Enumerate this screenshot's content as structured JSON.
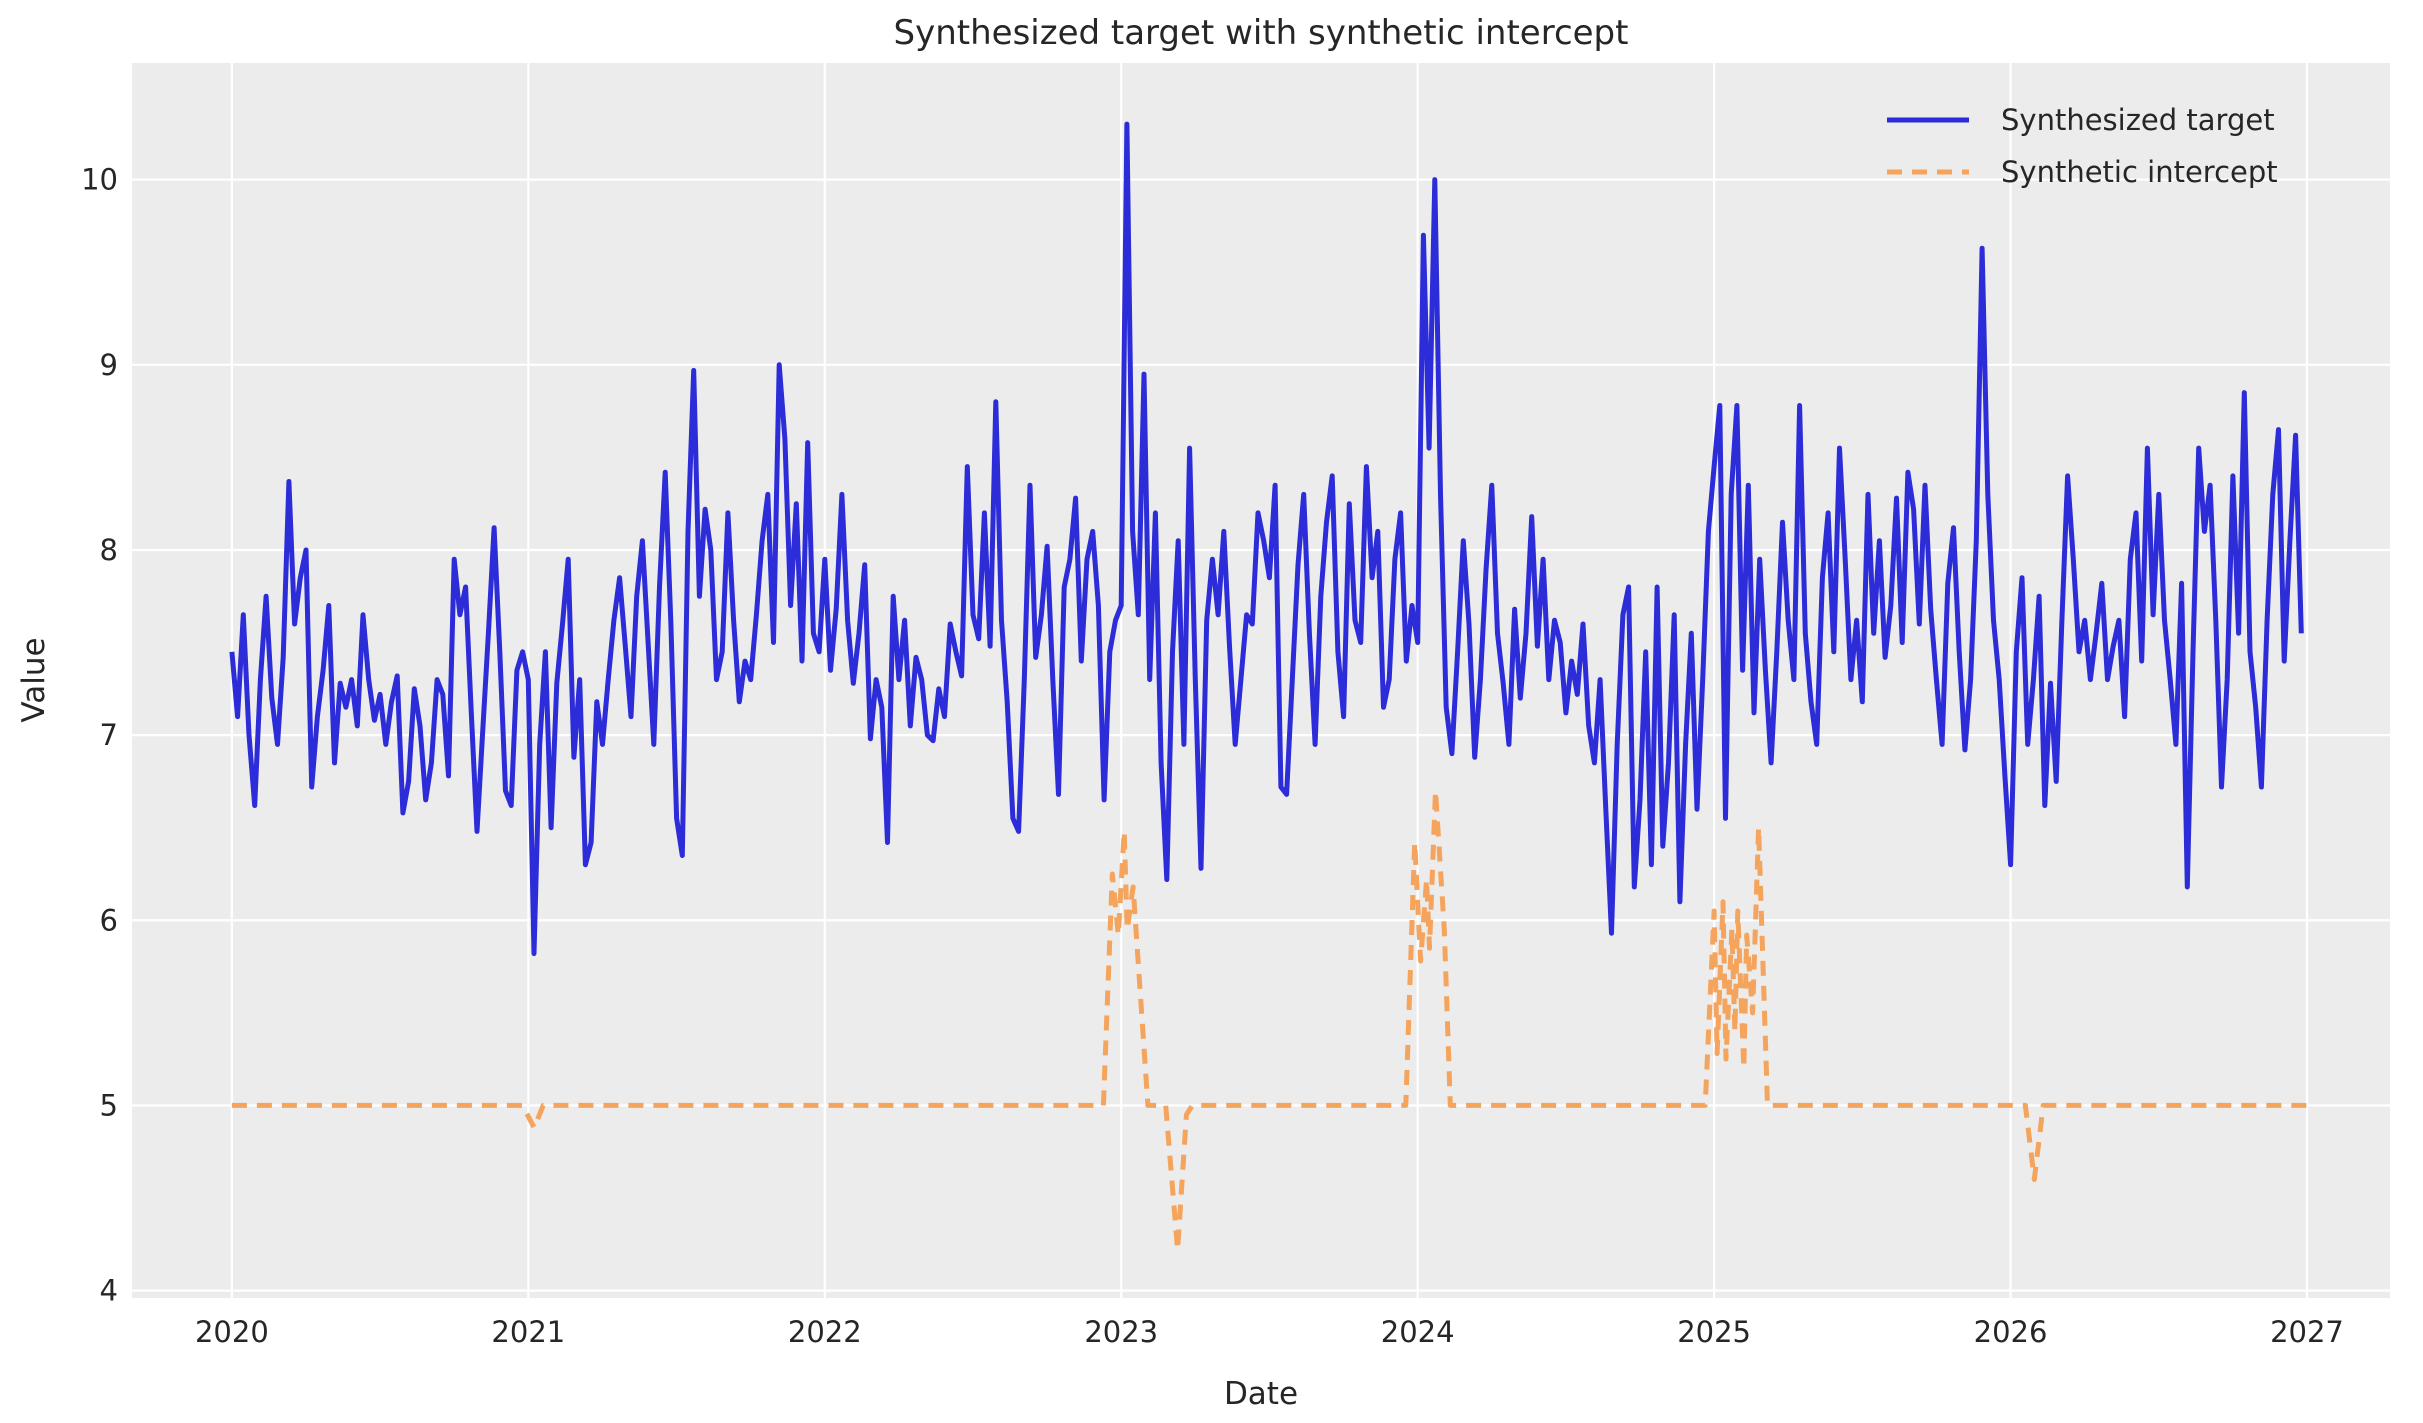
{
  "chart_data": {
    "type": "line",
    "title": "Synthesized target with synthetic intercept",
    "xlabel": "Date",
    "ylabel": "Value",
    "x_ticks": [
      2020,
      2021,
      2022,
      2023,
      2024,
      2025,
      2026,
      2027
    ],
    "y_ticks": [
      4,
      5,
      6,
      7,
      8,
      9,
      10
    ],
    "xlim": [
      2019.663,
      2027.28
    ],
    "ylim": [
      3.96,
      10.63
    ],
    "grid": true,
    "legend_position": "upper right",
    "plot_background": "#ECECEC",
    "grid_color": "#FFFFFF",
    "text_color": "#262626",
    "series": [
      {
        "name": "Synthesized target",
        "color": "#2C2CD8",
        "style": "solid",
        "width": 5,
        "x_start": 2020.0,
        "x_step": 0.01923077,
        "values": [
          7.45,
          7.1,
          7.65,
          7.0,
          6.62,
          7.3,
          7.75,
          7.2,
          6.95,
          7.42,
          8.37,
          7.6,
          7.85,
          8.0,
          6.72,
          7.1,
          7.35,
          7.7,
          6.85,
          7.28,
          7.15,
          7.3,
          7.05,
          7.65,
          7.3,
          7.08,
          7.22,
          6.95,
          7.18,
          7.32,
          6.58,
          6.75,
          7.25,
          7.05,
          6.65,
          6.85,
          7.3,
          7.22,
          6.78,
          7.95,
          7.65,
          7.8,
          7.12,
          6.48,
          7.02,
          7.55,
          8.12,
          7.45,
          6.7,
          6.62,
          7.35,
          7.45,
          7.3,
          5.82,
          6.95,
          7.45,
          6.5,
          7.28,
          7.6,
          7.95,
          6.88,
          7.3,
          6.3,
          6.42,
          7.18,
          6.95,
          7.3,
          7.62,
          7.85,
          7.48,
          7.1,
          7.75,
          8.05,
          7.5,
          6.95,
          7.8,
          8.42,
          7.6,
          6.55,
          6.35,
          8.1,
          8.97,
          7.75,
          8.22,
          8.0,
          7.3,
          7.45,
          8.2,
          7.62,
          7.18,
          7.4,
          7.3,
          7.65,
          8.05,
          8.3,
          7.5,
          9.0,
          8.6,
          7.7,
          8.25,
          7.4,
          8.58,
          7.55,
          7.45,
          7.95,
          7.35,
          7.68,
          8.3,
          7.62,
          7.28,
          7.55,
          7.92,
          6.98,
          7.3,
          7.15,
          6.42,
          7.75,
          7.3,
          7.62,
          7.05,
          7.42,
          7.3,
          7.0,
          6.97,
          7.25,
          7.1,
          7.6,
          7.45,
          7.32,
          8.45,
          7.65,
          7.52,
          8.2,
          7.48,
          8.8,
          7.62,
          7.18,
          6.55,
          6.48,
          7.3,
          8.35,
          7.42,
          7.65,
          8.02,
          7.3,
          6.68,
          7.8,
          7.95,
          8.28,
          7.4,
          7.95,
          8.1,
          7.7,
          6.65,
          7.45,
          7.62,
          7.7,
          10.3,
          8.1,
          7.65,
          8.95,
          7.3,
          8.2,
          6.85,
          6.22,
          7.45,
          8.05,
          6.95,
          8.55,
          7.3,
          6.28,
          7.62,
          7.95,
          7.65,
          8.1,
          7.48,
          6.95,
          7.3,
          7.65,
          7.6,
          8.2,
          8.05,
          7.85,
          8.35,
          6.72,
          6.68,
          7.3,
          7.92,
          8.3,
          7.55,
          6.95,
          7.75,
          8.15,
          8.4,
          7.45,
          7.1,
          8.25,
          7.62,
          7.5,
          8.45,
          7.85,
          8.1,
          7.15,
          7.3,
          7.95,
          8.2,
          7.4,
          7.7,
          7.5,
          9.7,
          8.55,
          10.0,
          8.3,
          7.15,
          6.9,
          7.45,
          8.05,
          7.6,
          6.88,
          7.3,
          7.9,
          8.35,
          7.55,
          7.28,
          6.95,
          7.68,
          7.2,
          7.55,
          8.18,
          7.48,
          7.95,
          7.3,
          7.62,
          7.5,
          7.12,
          7.4,
          7.22,
          7.6,
          7.05,
          6.85,
          7.3,
          6.6,
          5.93,
          6.95,
          7.65,
          7.8,
          6.18,
          6.65,
          7.45,
          6.3,
          7.8,
          6.4,
          6.85,
          7.65,
          6.1,
          6.95,
          7.55,
          6.6,
          7.3,
          8.1,
          8.45,
          8.78,
          6.55,
          8.3,
          8.78,
          7.35,
          8.35,
          7.12,
          7.95,
          7.35,
          6.85,
          7.45,
          8.15,
          7.62,
          7.3,
          8.78,
          7.55,
          7.18,
          6.95,
          7.85,
          8.2,
          7.45,
          8.55,
          7.95,
          7.3,
          7.62,
          7.18,
          8.3,
          7.55,
          8.05,
          7.42,
          7.7,
          8.28,
          7.5,
          8.42,
          8.22,
          7.6,
          8.35,
          7.68,
          7.3,
          6.95,
          7.82,
          8.12,
          7.45,
          6.92,
          7.3,
          8.05,
          9.63,
          8.3,
          7.62,
          7.3,
          6.78,
          6.3,
          7.45,
          7.85,
          6.95,
          7.3,
          7.75,
          6.62,
          7.28,
          6.75,
          7.62,
          8.4,
          7.95,
          7.45,
          7.62,
          7.3,
          7.55,
          7.82,
          7.3,
          7.48,
          7.62,
          7.1,
          7.95,
          8.2,
          7.4,
          8.55,
          7.65,
          8.3,
          7.62,
          7.3,
          6.95,
          7.82,
          6.18,
          7.45,
          8.55,
          8.1,
          8.35,
          7.62,
          6.72,
          7.3,
          8.4,
          7.55,
          8.85,
          7.45,
          7.15,
          6.72,
          7.62,
          8.3,
          8.65,
          7.4,
          8.05,
          8.62,
          7.55
        ]
      },
      {
        "name": "Synthetic intercept",
        "color": "#F4A45C",
        "style": "dashed",
        "width": 5,
        "points": [
          [
            2020.0,
            5.0
          ],
          [
            2020.98,
            5.0
          ],
          [
            2021.02,
            4.88
          ],
          [
            2021.05,
            5.0
          ],
          [
            2022.94,
            5.0
          ],
          [
            2022.97,
            6.25
          ],
          [
            2022.99,
            5.92
          ],
          [
            2023.01,
            6.48
          ],
          [
            2023.02,
            5.95
          ],
          [
            2023.04,
            6.18
          ],
          [
            2023.09,
            5.0
          ],
          [
            2023.15,
            5.0
          ],
          [
            2023.19,
            4.22
          ],
          [
            2023.22,
            4.95
          ],
          [
            2023.24,
            5.0
          ],
          [
            2023.96,
            5.0
          ],
          [
            2023.99,
            6.42
          ],
          [
            2024.01,
            5.78
          ],
          [
            2024.03,
            6.22
          ],
          [
            2024.04,
            5.85
          ],
          [
            2024.06,
            6.7
          ],
          [
            2024.09,
            5.95
          ],
          [
            2024.11,
            5.0
          ],
          [
            2024.97,
            5.0
          ],
          [
            2025.0,
            6.05
          ],
          [
            2025.01,
            5.28
          ],
          [
            2025.03,
            6.1
          ],
          [
            2025.04,
            5.25
          ],
          [
            2025.06,
            5.95
          ],
          [
            2025.07,
            5.4
          ],
          [
            2025.08,
            6.05
          ],
          [
            2025.1,
            5.2
          ],
          [
            2025.11,
            5.92
          ],
          [
            2025.13,
            5.5
          ],
          [
            2025.15,
            6.5
          ],
          [
            2025.18,
            5.0
          ],
          [
            2026.05,
            5.0
          ],
          [
            2026.08,
            4.6
          ],
          [
            2026.11,
            5.0
          ],
          [
            2027.0,
            5.0
          ]
        ]
      }
    ]
  }
}
